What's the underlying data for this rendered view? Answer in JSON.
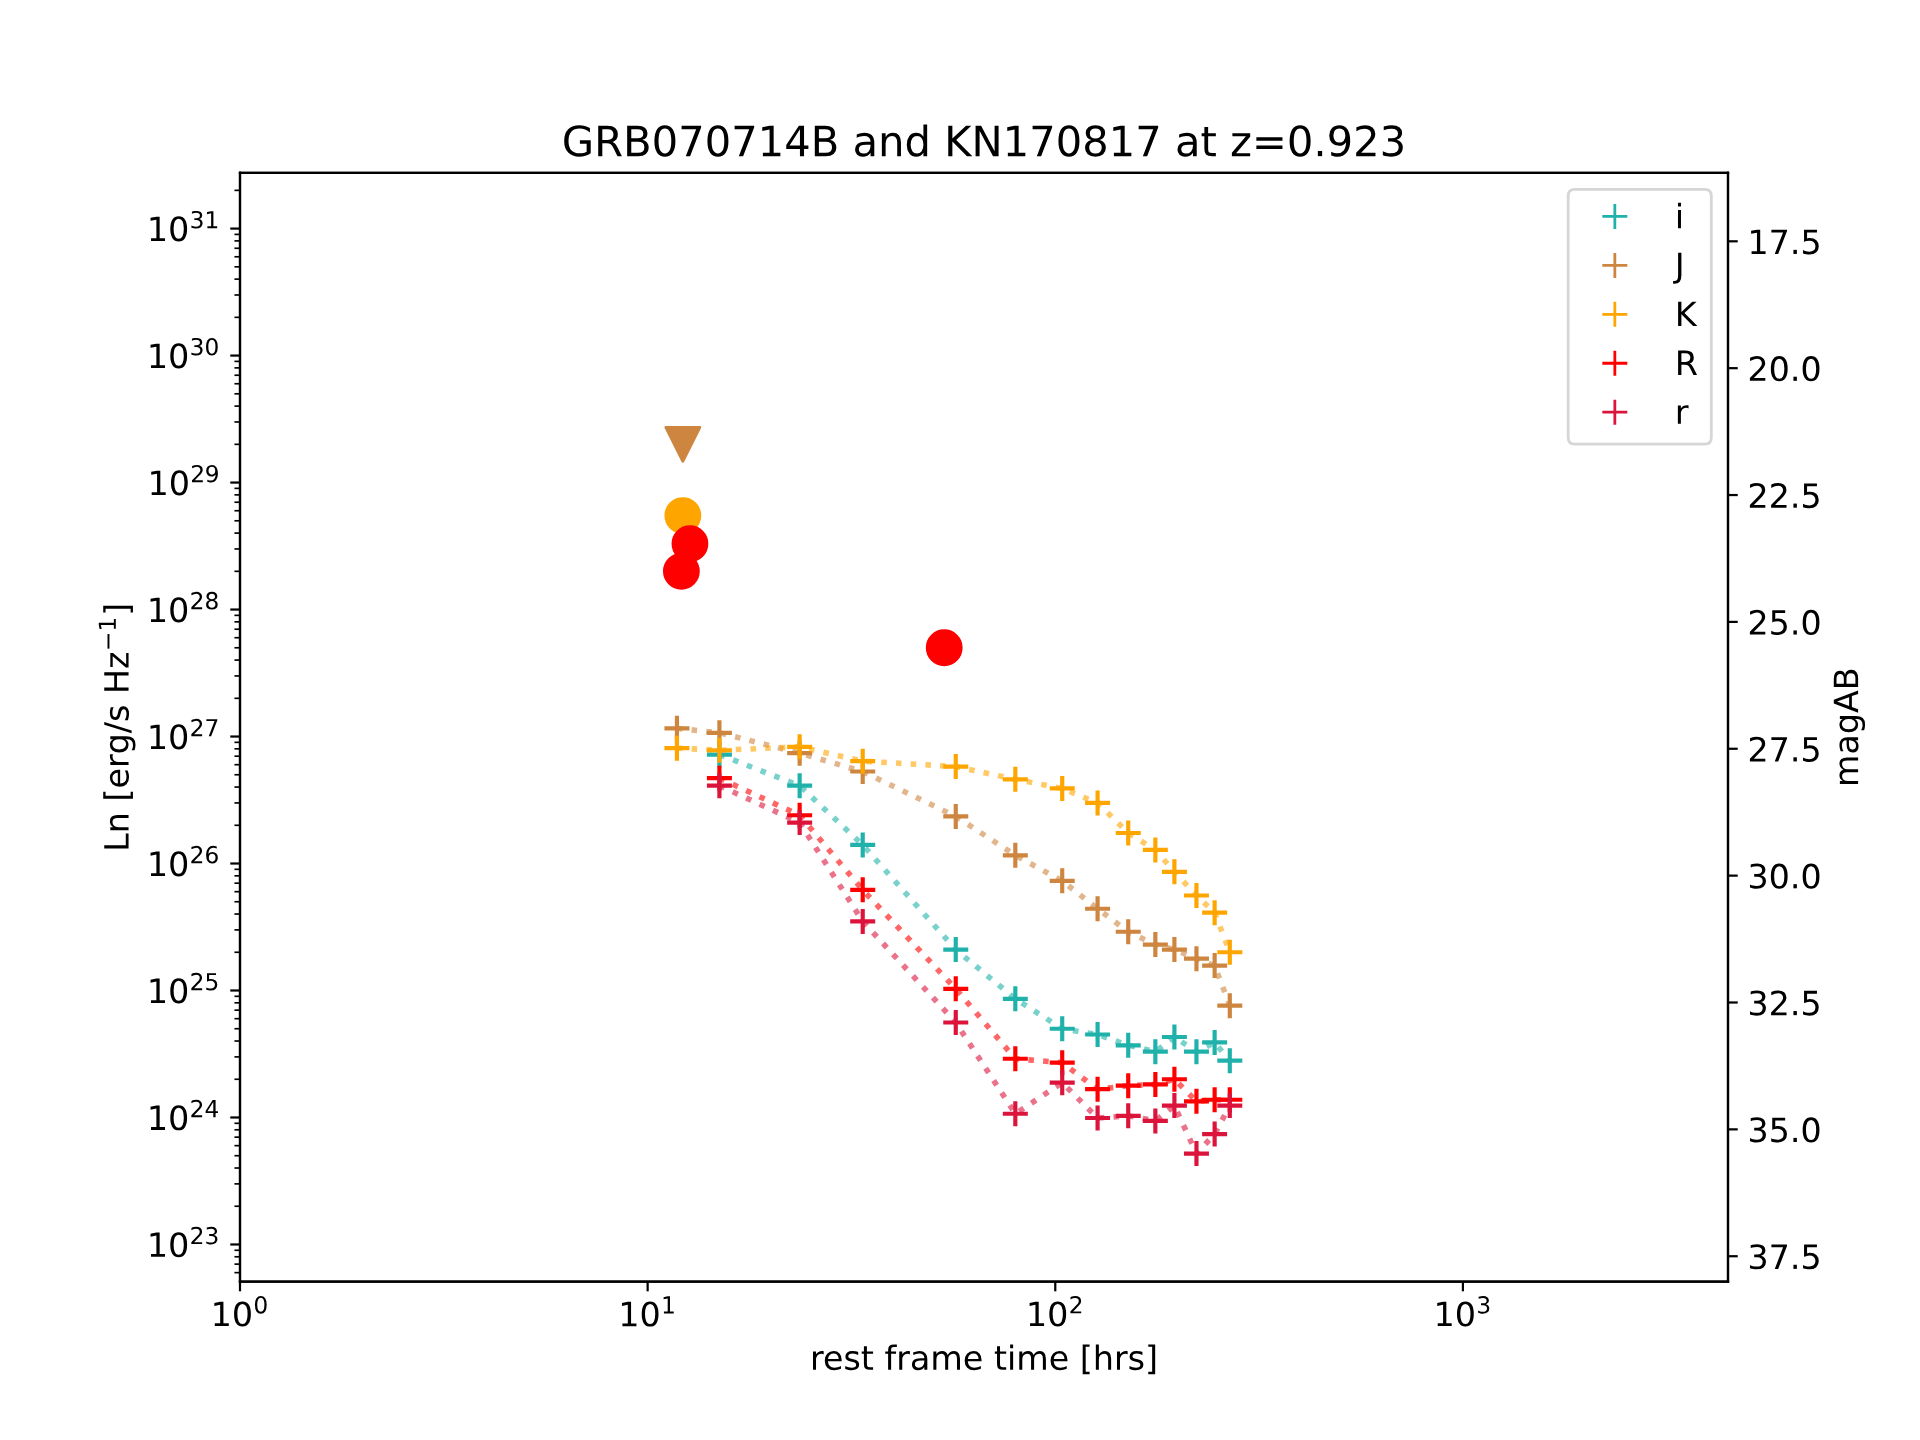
{
  "chart_data": {
    "type": "line",
    "title": "GRB070714B and KN170817 at z=0.923",
    "xlabel": "rest frame time [hrs]",
    "ylabel": "Ln [erg/s Hz$^{−1}$]",
    "y2label": "magAB",
    "log": "xy",
    "xlim": [
      1,
      4470
    ],
    "ylim": [
      5.1e+22,
      2.75e+31
    ],
    "xticks": [
      {
        "value": 1,
        "label": "10$^{0}$"
      },
      {
        "value": 10,
        "label": "10$^{1}$"
      },
      {
        "value": 100,
        "label": "10$^{2}$"
      },
      {
        "value": 1000,
        "label": "10$^{3}$"
      }
    ],
    "yticks": [
      {
        "value": 1e+23,
        "label": "10$^{23}$"
      },
      {
        "value": 1e+24,
        "label": "10$^{24}$"
      },
      {
        "value": 1e+25,
        "label": "10$^{25}$"
      },
      {
        "value": 1e+26,
        "label": "10$^{26}$"
      },
      {
        "value": 1e+27,
        "label": "10$^{27}$"
      },
      {
        "value": 1e+28,
        "label": "10$^{28}$"
      },
      {
        "value": 1e+29,
        "label": "10$^{29}$"
      },
      {
        "value": 1e+30,
        "label": "10$^{30}$"
      },
      {
        "value": 1e+31,
        "label": "10$^{31}$"
      }
    ],
    "y2lim": [
      38.0,
      16.15
    ],
    "y2ticks": [
      17.5,
      {
        "value": 20,
        "label": "20.0"
      },
      22.5,
      {
        "value": 25,
        "label": "25.0"
      },
      27.5,
      {
        "value": 30,
        "label": "30.0"
      },
      32.5,
      {
        "value": 35,
        "label": "35.0"
      },
      37.5
    ],
    "legend": "top right",
    "grid": false,
    "marker": "cross",
    "line_style": "dotted",
    "series": [
      {
        "name": "i",
        "color": "#20b2aa",
        "x": [
          15.0,
          23.6,
          33.7,
          57.0,
          79.8,
          104,
          127,
          151,
          176,
          196,
          222,
          246,
          268
        ],
        "values": [
          7.2e+26,
          4.1e+26,
          1.4e+26,
          2.1e+25,
          8.6e+24,
          5e+24,
          4.5e+24,
          3.7e+24,
          3.3e+24,
          4.3e+24,
          3.3e+24,
          3.9e+24,
          2.8e+24
        ]
      },
      {
        "name": "J",
        "color": "#cd853f",
        "x": [
          11.8,
          15.0,
          23.6,
          33.7,
          57.0,
          79.8,
          104,
          127,
          151,
          176,
          196,
          222,
          246,
          268
        ],
        "values": [
          1.16e+27,
          1.07e+27,
          7.4e+26,
          5.3e+26,
          2.35e+26,
          1.16e+26,
          7.3e+25,
          4.4e+25,
          2.9e+25,
          2.3e+25,
          2.1e+25,
          1.78e+25,
          1.57e+25,
          7.6e+24
        ]
      },
      {
        "name": "K",
        "color": "#ffa500",
        "x": [
          11.8,
          15.0,
          23.6,
          33.7,
          57.0,
          79.8,
          104,
          127,
          151,
          176,
          196,
          222,
          246,
          268
        ],
        "values": [
          8.1e+26,
          7.8e+26,
          8.3e+26,
          6.4e+26,
          5.8e+26,
          4.6e+26,
          3.9e+26,
          3e+26,
          1.74e+26,
          1.28e+26,
          8.6e+25,
          5.6e+25,
          4.1e+25,
          2e+25
        ]
      },
      {
        "name": "R",
        "color": "#ff0000",
        "x": [
          15.0,
          23.6,
          33.7,
          57.0,
          79.8,
          104,
          127,
          151,
          176,
          196,
          222,
          246,
          268
        ],
        "values": [
          4.7e+26,
          2.4e+26,
          6.2e+25,
          1.03e+25,
          2.9e+24,
          2.7e+24,
          1.67e+24,
          1.78e+24,
          1.82e+24,
          2e+24,
          1.34e+24,
          1.38e+24,
          1.38e+24
        ]
      },
      {
        "name": "r",
        "color": "#dc143c",
        "x": [
          15.0,
          23.6,
          33.7,
          57.0,
          79.8,
          104,
          127,
          151,
          176,
          196,
          222,
          246,
          268
        ],
        "values": [
          4.1e+26,
          2.1e+26,
          3.5e+25,
          5.6e+24,
          1.07e+24,
          1.88e+24,
          9.9e+23,
          1.03e+24,
          9.4e+23,
          1.24e+24,
          5.2e+23,
          7.4e+23,
          1.24e+24
        ]
      },
      {
        "type": "scatter",
        "marker": "triangle",
        "color": "#cd853f",
        "x": [
          12.2
        ],
        "values": [
          2e+29
        ]
      },
      {
        "type": "scatter",
        "marker": "circle",
        "color": "#ffa500",
        "x": [
          12.2
        ],
        "values": [
          5.5e+28
        ]
      },
      {
        "type": "scatter",
        "marker": "circle",
        "color": "#ff0000",
        "x": [
          12.7,
          12.1,
          53.4
        ],
        "values": [
          3.3e+28,
          2e+28,
          5e+27
        ]
      }
    ]
  }
}
